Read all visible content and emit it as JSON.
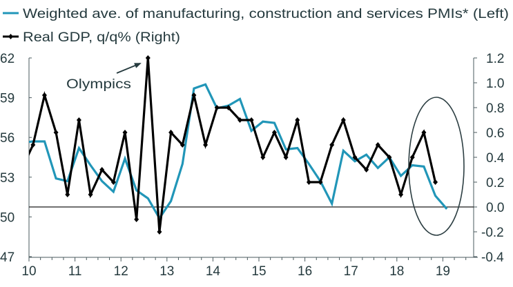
{
  "chart_data": {
    "type": "line",
    "title": "",
    "legend": {
      "placement": "top-left",
      "entries": [
        {
          "name": "Weighted ave. of manufacturing, construction and services PMIs* (Left)",
          "color": "#2196b8",
          "marker": "none"
        },
        {
          "name": "Real GDP, q/q% (Right)",
          "color": "#000000",
          "marker": "diamond"
        }
      ]
    },
    "x": [
      "09Q4",
      "10Q1",
      "10Q2",
      "10Q3",
      "10Q4",
      "11Q1",
      "11Q2",
      "11Q3",
      "11Q4",
      "12Q1",
      "12Q2",
      "12Q3",
      "12Q4",
      "13Q1",
      "13Q2",
      "13Q3",
      "13Q4",
      "14Q1",
      "14Q2",
      "14Q3",
      "14Q4",
      "15Q1",
      "15Q2",
      "15Q3",
      "15Q4",
      "16Q1",
      "16Q2",
      "16Q3",
      "16Q4",
      "17Q1",
      "17Q2",
      "17Q3",
      "17Q4",
      "18Q1",
      "18Q2",
      "18Q3",
      "18Q4",
      "19Q1"
    ],
    "x_ticks": [
      "10",
      "11",
      "12",
      "13",
      "14",
      "15",
      "16",
      "17",
      "18",
      "19"
    ],
    "series": [
      {
        "name": "Weighted ave. of manufacturing, construction and services PMIs* (Left)",
        "axis": "left",
        "color": "#2196b8",
        "values": [
          55.6,
          55.7,
          55.7,
          52.9,
          52.7,
          55.2,
          53.9,
          52.7,
          51.9,
          54.4,
          52.0,
          51.4,
          49.9,
          51.2,
          54.0,
          59.7,
          60.0,
          58.2,
          58.4,
          58.9,
          56.5,
          57.2,
          57.1,
          55.1,
          55.2,
          54.0,
          52.7,
          51.0,
          55.0,
          54.2,
          54.7,
          53.7,
          54.5,
          53.1,
          53.9,
          53.8,
          51.6,
          50.6
        ]
      },
      {
        "name": "Real GDP, q/q% (Right)",
        "axis": "right",
        "color": "#000000",
        "values": [
          0.3,
          0.5,
          0.9,
          0.6,
          0.1,
          0.7,
          0.1,
          0.3,
          0.2,
          0.6,
          -0.1,
          1.2,
          -0.2,
          0.6,
          0.5,
          0.9,
          0.5,
          0.8,
          0.8,
          0.7,
          0.7,
          0.4,
          0.6,
          0.4,
          0.7,
          0.2,
          0.2,
          0.5,
          0.7,
          0.4,
          0.3,
          0.5,
          0.4,
          0.1,
          0.4,
          0.6,
          0.2,
          null
        ]
      }
    ],
    "left_axis": {
      "ylim": [
        47,
        62
      ],
      "ticks": [
        "62",
        "59",
        "56",
        "53",
        "50",
        "47"
      ],
      "tick_values": [
        62,
        59,
        56,
        53,
        50,
        47
      ]
    },
    "right_axis": {
      "ylim": [
        -0.4,
        1.2
      ],
      "ticks": [
        "1.2",
        "1.0",
        "0.8",
        "0.6",
        "0.4",
        "0.2",
        "0.0",
        "-0.2",
        "-0.4"
      ],
      "tick_values": [
        1.2,
        1.0,
        0.8,
        0.6,
        0.4,
        0.2,
        0.0,
        -0.2,
        -0.4
      ]
    },
    "reference_line": {
      "axis": "right",
      "value": 0.0
    },
    "annotations": [
      {
        "text": "Olympics",
        "points_to": "12Q3"
      },
      {
        "shape": "ellipse",
        "highlights": [
          "18Q2",
          "18Q3",
          "18Q4",
          "19Q1"
        ]
      }
    ],
    "xlabel": "",
    "ylabel": "",
    "grid": false
  }
}
